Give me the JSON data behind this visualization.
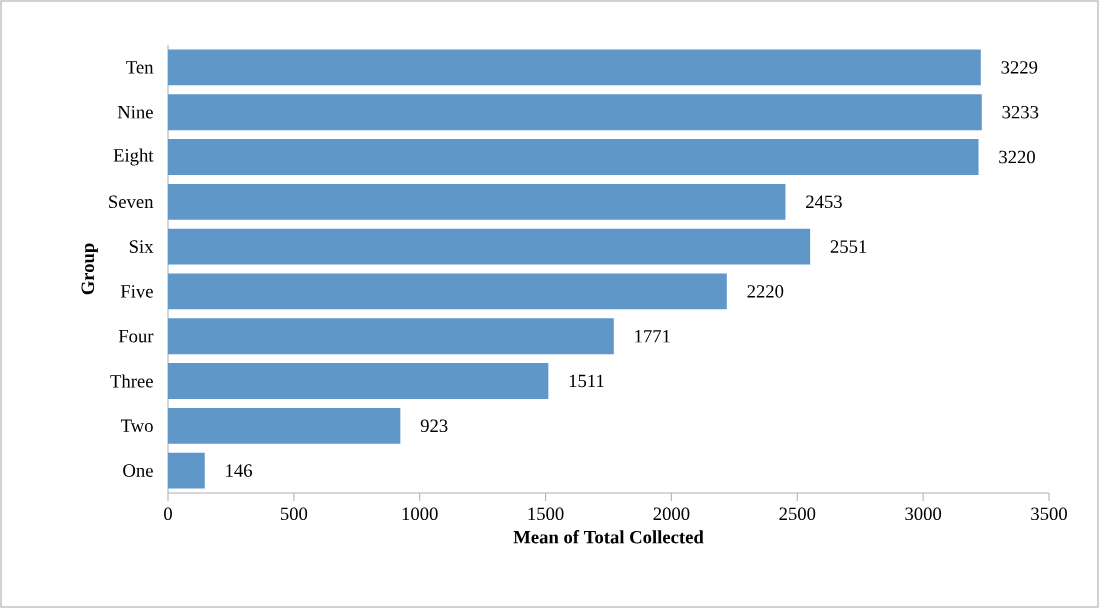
{
  "chart_data": {
    "type": "bar",
    "orientation": "horizontal",
    "xlabel": "Mean of Total Collected",
    "ylabel": "Group",
    "categories": [
      "Ten",
      "Nine",
      "Eight",
      "Seven",
      "Six",
      "Five",
      "Four",
      "Three",
      "Two",
      "One"
    ],
    "values": [
      3229,
      3233,
      3220,
      2453,
      2551,
      2220,
      1771,
      1511,
      923,
      146
    ],
    "color": "#5f97c9",
    "xlim": [
      0,
      3500
    ],
    "xticks": [
      0,
      500,
      1000,
      1500,
      2000,
      2500,
      3000,
      3500
    ],
    "data_labels": true
  }
}
